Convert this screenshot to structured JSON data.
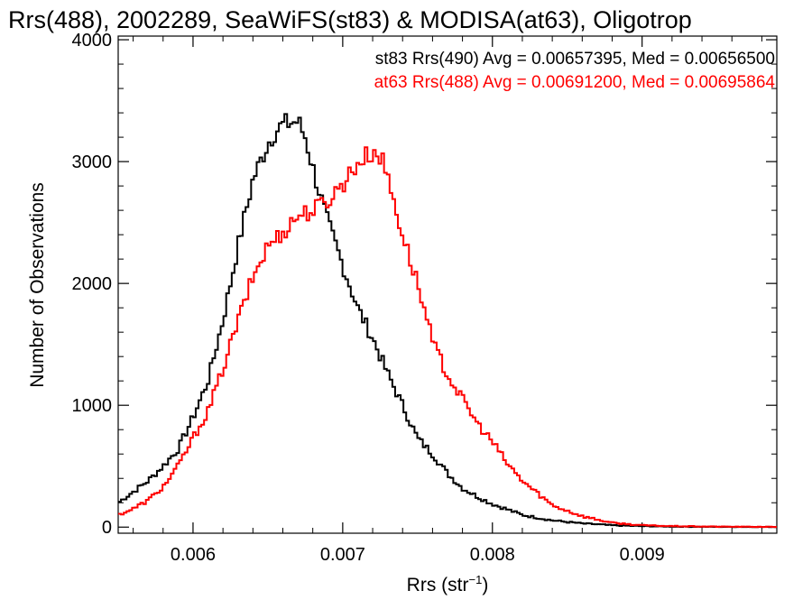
{
  "chart_data": {
    "type": "line",
    "title": "Rrs(488), 2002289, SeaWiFS(st83) & MODISA(at63), Oligotrop",
    "xlabel_main": "Rrs (str",
    "xlabel_sup": "−1",
    "xlabel_end": ")",
    "ylabel": "Number of Observations",
    "xlim": [
      0.0055,
      0.0099
    ],
    "ylim": [
      -50,
      4030
    ],
    "x_ticks": [
      0.006,
      0.007,
      0.008,
      0.009
    ],
    "x_tick_labels": [
      "0.006",
      "0.007",
      "0.008",
      "0.009"
    ],
    "y_ticks": [
      0,
      1000,
      2000,
      3000,
      4000
    ],
    "y_tick_labels": [
      "0",
      "1000",
      "2000",
      "3000",
      "4000"
    ],
    "legend": [
      {
        "text": "st83 Rrs(490) Avg = 0.00657395, Med = 0.00656500",
        "color": "#000000"
      },
      {
        "text": "at63 Rrs(488) Avg = 0.00691200, Med = 0.00695864",
        "color": "#ff0000"
      }
    ],
    "series": [
      {
        "name": "st83 Rrs(490)",
        "color": "#000000",
        "x": [
          0.0055,
          0.0056,
          0.0057,
          0.0058,
          0.0059,
          0.006,
          0.0061,
          0.0062,
          0.0063,
          0.0064,
          0.0065,
          0.00655,
          0.0066,
          0.00665,
          0.0067,
          0.00675,
          0.0068,
          0.0069,
          0.007,
          0.0071,
          0.0072,
          0.0073,
          0.0074,
          0.0075,
          0.0076,
          0.0077,
          0.0078,
          0.0079,
          0.008,
          0.0082,
          0.0084,
          0.0086,
          0.0088,
          0.009,
          0.0092,
          0.0095,
          0.0099
        ],
        "y": [
          200,
          290,
          380,
          500,
          640,
          900,
          1200,
          1700,
          2300,
          2850,
          3150,
          3250,
          3300,
          3320,
          3330,
          3200,
          2950,
          2500,
          2150,
          1800,
          1550,
          1260,
          1000,
          730,
          600,
          440,
          320,
          250,
          190,
          100,
          55,
          30,
          15,
          8,
          4,
          2,
          1
        ]
      },
      {
        "name": "at63 Rrs(488)",
        "color": "#ff0000",
        "x": [
          0.0055,
          0.0056,
          0.0057,
          0.0058,
          0.0059,
          0.006,
          0.0061,
          0.0062,
          0.0063,
          0.0064,
          0.0065,
          0.0066,
          0.0067,
          0.0068,
          0.0069,
          0.007,
          0.0071,
          0.0072,
          0.00725,
          0.0073,
          0.0074,
          0.0075,
          0.0076,
          0.0077,
          0.0078,
          0.0079,
          0.008,
          0.0081,
          0.0082,
          0.0083,
          0.0084,
          0.0086,
          0.0088,
          0.009,
          0.0092,
          0.0095,
          0.0099
        ],
        "y": [
          100,
          150,
          220,
          330,
          500,
          730,
          950,
          1300,
          1690,
          2050,
          2310,
          2420,
          2560,
          2600,
          2680,
          2820,
          2990,
          3080,
          3050,
          2880,
          2400,
          2000,
          1520,
          1250,
          1050,
          850,
          700,
          520,
          380,
          280,
          180,
          90,
          35,
          15,
          8,
          4,
          2
        ]
      }
    ]
  }
}
